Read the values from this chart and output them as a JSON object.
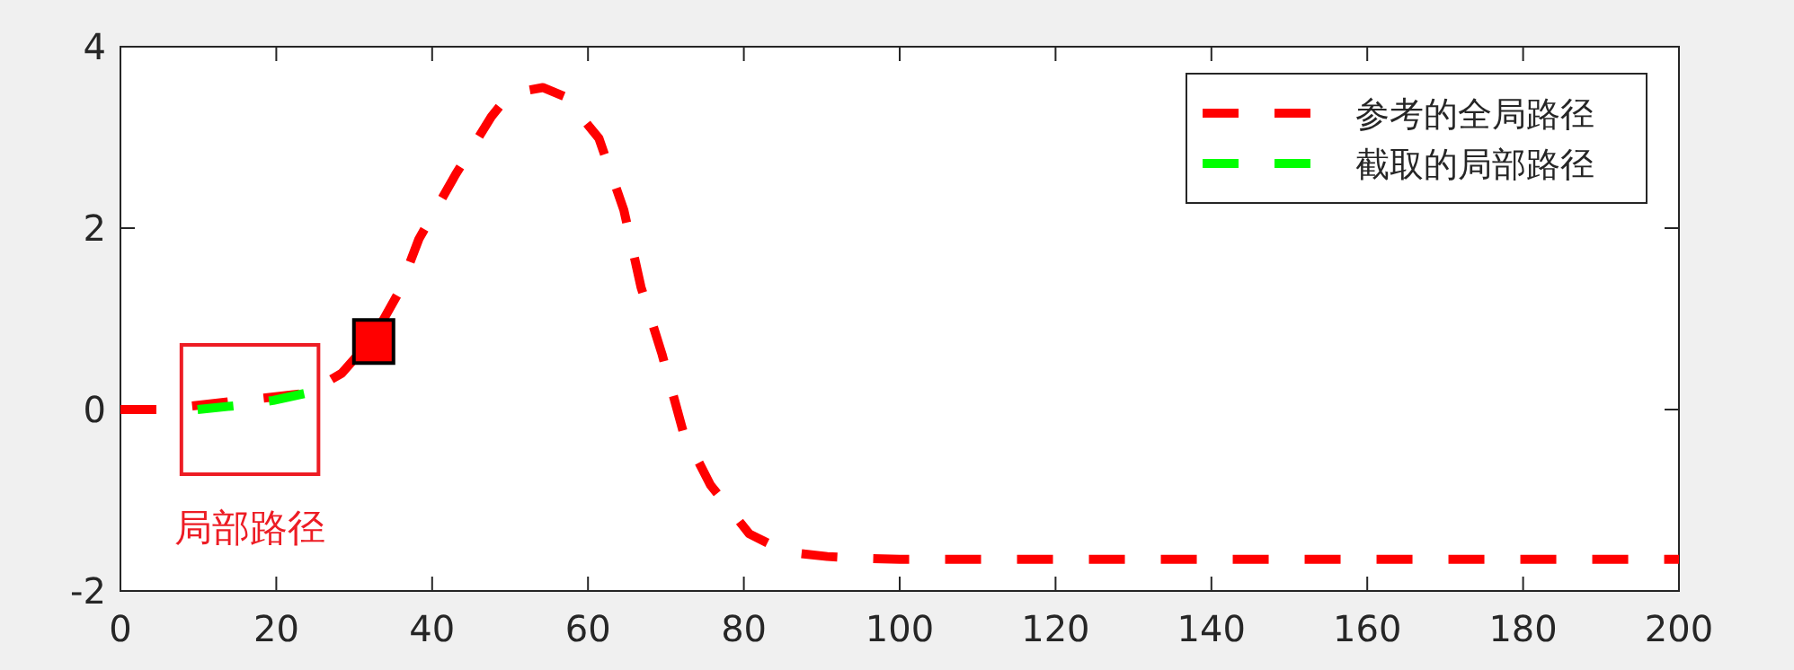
{
  "chart_data": {
    "type": "line",
    "xlim": [
      0,
      200
    ],
    "ylim": [
      -2,
      4
    ],
    "xticks": [
      0,
      20,
      40,
      60,
      80,
      100,
      120,
      140,
      160,
      180,
      200
    ],
    "yticks": [
      -2,
      0,
      2,
      4
    ],
    "grid": false,
    "legend": "top right",
    "line_style": "dashed",
    "annotations": [
      "局部路径"
    ],
    "series": [
      {
        "name": "参考的全局路径",
        "color": "#ff0000",
        "x": [
          0,
          5,
          24,
          28.4,
          32.5,
          35.7,
          38.3,
          43,
          47.6,
          49.1,
          51,
          54.2,
          57,
          61.4,
          64.6,
          66.8,
          69.5,
          72.2,
          75.7,
          80.7,
          83.7,
          86.5,
          90.7,
          95,
          100,
          200
        ],
        "values": [
          0,
          0,
          0.18,
          0.4,
          0.8,
          1.29,
          1.88,
          2.59,
          3.23,
          3.39,
          3.5,
          3.55,
          3.45,
          2.99,
          2.2,
          1.35,
          0.61,
          -0.24,
          -0.83,
          -1.37,
          -1.5,
          -1.58,
          -1.62,
          -1.64,
          -1.65,
          -1.65
        ]
      },
      {
        "name": "截取的局部路径",
        "color": "#00ff00",
        "x": [
          9.9,
          14.5,
          19.6,
          23.8
        ],
        "values": [
          0,
          0.04,
          0.1,
          0.18
        ]
      },
      {
        "type": "scatter",
        "marker": "square",
        "color": "#ff0000",
        "x": [
          32.5
        ],
        "values": [
          0.75
        ]
      }
    ]
  }
}
